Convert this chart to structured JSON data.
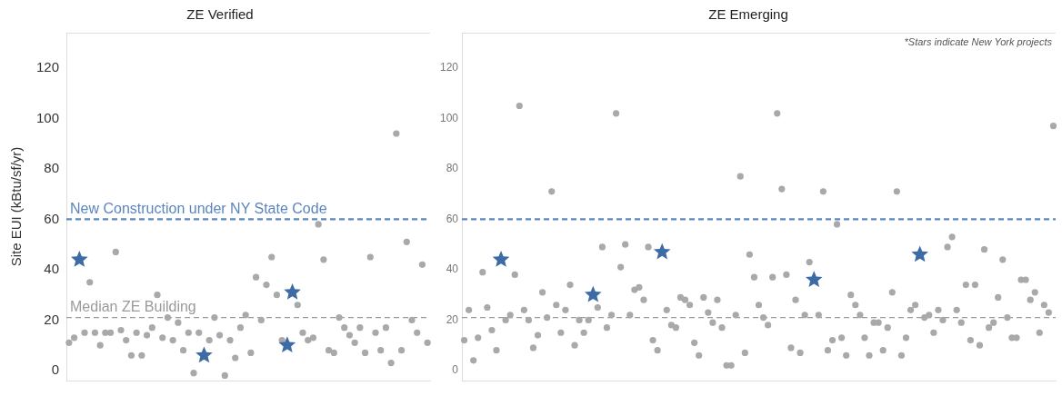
{
  "chart_data": [
    {
      "type": "scatter",
      "title": "ZE Verified",
      "ylabel": "Site EUI (kBtu/sf/yr)",
      "ylim": [
        -4,
        134
      ],
      "yticks": [
        0,
        20,
        40,
        60,
        80,
        100,
        120
      ],
      "tick_labels": "y",
      "categories": [
        null,
        null,
        null,
        null,
        null,
        null,
        null,
        null,
        null,
        null,
        null,
        null,
        null,
        null,
        null,
        null,
        null,
        null,
        null,
        null,
        null,
        null,
        null,
        null,
        null,
        null,
        null,
        null,
        null,
        null,
        null,
        null,
        null,
        null,
        null,
        null,
        null,
        null,
        null,
        null,
        null,
        null,
        null,
        null,
        null,
        null,
        null,
        null,
        null,
        null,
        null,
        null,
        null,
        null,
        null,
        null,
        null,
        null,
        null,
        null,
        null,
        null,
        null,
        null,
        null,
        null,
        null,
        null,
        null,
        null
      ],
      "series": [
        {
          "color": "#a9a9a9",
          "marker": "circle",
          "values": [
            11,
            13,
            null,
            15,
            35,
            15,
            10,
            15,
            15,
            47,
            16,
            12,
            6,
            15,
            6,
            14,
            17,
            30,
            13,
            21,
            12,
            19,
            8,
            15,
            -1,
            15,
            null,
            12,
            21,
            14,
            -2,
            12,
            5,
            17,
            22,
            7,
            37,
            20,
            34,
            45,
            30,
            12,
            null,
            null,
            26,
            15,
            12,
            13,
            58,
            44,
            8,
            7,
            21,
            17,
            14,
            11,
            17,
            7,
            45,
            15,
            8,
            17,
            3,
            94,
            8,
            51,
            20,
            15,
            42,
            11
          ]
        },
        {
          "color": "#3d6ba6",
          "marker": "star",
          "values": [
            null,
            null,
            44,
            null,
            null,
            null,
            null,
            null,
            null,
            null,
            null,
            null,
            null,
            null,
            null,
            null,
            null,
            null,
            null,
            null,
            null,
            null,
            null,
            null,
            null,
            null,
            6,
            null,
            null,
            null,
            null,
            null,
            null,
            null,
            null,
            null,
            null,
            null,
            null,
            null,
            null,
            null,
            10,
            31,
            null,
            null,
            null,
            null,
            null,
            null,
            null,
            null,
            null,
            null,
            null,
            null,
            null,
            null,
            null,
            null,
            null,
            null,
            null,
            null,
            null,
            null,
            null,
            null,
            null,
            null
          ]
        }
      ],
      "ref_lines": [
        {
          "axis": "y",
          "value": 60,
          "label": "New Construction under NY State Code",
          "color": "#5a86bd",
          "line_style": "dashed"
        },
        {
          "axis": "y",
          "value": 21,
          "label": "Median ZE Building",
          "color": "#9a9a9a",
          "line_style": "dashed"
        }
      ]
    },
    {
      "type": "scatter",
      "title": "ZE Emerging",
      "ylim": [
        -4,
        134
      ],
      "yticks": [
        0,
        20,
        40,
        60,
        80,
        100,
        120
      ],
      "tick_labels": "y",
      "categories": [
        null,
        null,
        null,
        null,
        null,
        null,
        null,
        null,
        null,
        null,
        null,
        null,
        null,
        null,
        null,
        null,
        null,
        null,
        null,
        null,
        null,
        null,
        null,
        null,
        null,
        null,
        null,
        null,
        null,
        null,
        null,
        null,
        null,
        null,
        null,
        null,
        null,
        null,
        null,
        null,
        null,
        null,
        null,
        null,
        null,
        null,
        null,
        null,
        null,
        null,
        null,
        null,
        null,
        null,
        null,
        null,
        null,
        null,
        null,
        null,
        null,
        null,
        null,
        null,
        null,
        null,
        null,
        null,
        null,
        null,
        null,
        null,
        null,
        null,
        null,
        null,
        null,
        null,
        null,
        null,
        null,
        null,
        null,
        null,
        null,
        null,
        null,
        null,
        null,
        null,
        null,
        null,
        null,
        null,
        null,
        null,
        null,
        null,
        null,
        null,
        null,
        null,
        null,
        null,
        null,
        null,
        null,
        null,
        null,
        null,
        null,
        null,
        null,
        null,
        null,
        null,
        null,
        null,
        null,
        null,
        null,
        null,
        null,
        null,
        null,
        null,
        null,
        null,
        null
      ],
      "series": [
        {
          "color": "#a9a9a9",
          "marker": "circle",
          "values": [
            12,
            24,
            4,
            13,
            39,
            25,
            16,
            8,
            null,
            20,
            22,
            38,
            105,
            24,
            20,
            9,
            14,
            31,
            21,
            71,
            26,
            15,
            24,
            34,
            10,
            20,
            15,
            20,
            null,
            25,
            49,
            17,
            22,
            102,
            41,
            50,
            22,
            32,
            33,
            28,
            49,
            12,
            8,
            null,
            24,
            18,
            17,
            29,
            28,
            26,
            11,
            6,
            29,
            23,
            19,
            28,
            17,
            2,
            2,
            22,
            77,
            7,
            46,
            37,
            26,
            21,
            18,
            37,
            102,
            72,
            38,
            9,
            28,
            7,
            22,
            43,
            null,
            22,
            71,
            8,
            12,
            58,
            13,
            6,
            30,
            26,
            22,
            13,
            6,
            19,
            19,
            8,
            17,
            31,
            71,
            6,
            13,
            24,
            26,
            null,
            21,
            22,
            15,
            24,
            20,
            49,
            53,
            24,
            19,
            34,
            12,
            34,
            10,
            48,
            17,
            19,
            29,
            44,
            21,
            13,
            13,
            36,
            36,
            28,
            31,
            15,
            26,
            23,
            97
          ]
        },
        {
          "color": "#3d6ba6",
          "marker": "star",
          "values": [
            null,
            null,
            null,
            null,
            null,
            null,
            null,
            null,
            44,
            null,
            null,
            null,
            null,
            null,
            null,
            null,
            null,
            null,
            null,
            null,
            null,
            null,
            null,
            null,
            null,
            null,
            null,
            null,
            30,
            null,
            null,
            null,
            null,
            null,
            null,
            null,
            null,
            null,
            null,
            null,
            null,
            null,
            null,
            47,
            null,
            null,
            null,
            null,
            null,
            null,
            null,
            null,
            null,
            null,
            null,
            null,
            null,
            null,
            null,
            null,
            null,
            null,
            null,
            null,
            null,
            null,
            null,
            null,
            null,
            null,
            null,
            null,
            null,
            null,
            null,
            null,
            36,
            null,
            null,
            null,
            null,
            null,
            null,
            null,
            null,
            null,
            null,
            null,
            null,
            null,
            null,
            null,
            null,
            null,
            null,
            null,
            null,
            null,
            null,
            46,
            null,
            null,
            null,
            null,
            null,
            null,
            null,
            null,
            null,
            null,
            null,
            null,
            null,
            null,
            null,
            null,
            null,
            null,
            null,
            null,
            null,
            null,
            null,
            null,
            null,
            null,
            null,
            null,
            null
          ]
        }
      ],
      "ref_lines": [
        {
          "axis": "y",
          "value": 60,
          "color": "#5a86bd",
          "line_style": "dashed"
        },
        {
          "axis": "y",
          "value": 21,
          "color": "#9a9a9a",
          "line_style": "dashed"
        }
      ],
      "annotations": [
        "*Stars indicate New York projects"
      ]
    }
  ]
}
